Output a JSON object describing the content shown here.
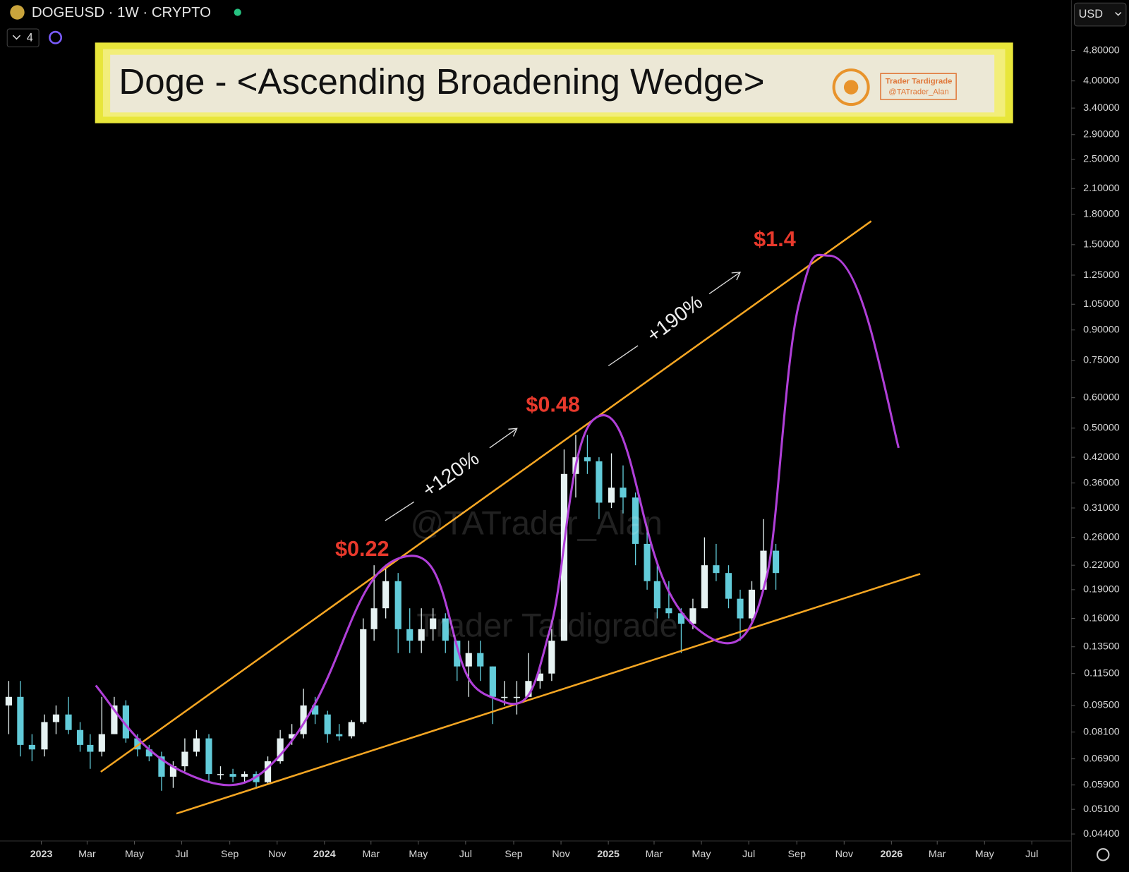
{
  "header": {
    "symbol": "DOGEUSD · 1W · CRYPTO",
    "indicator_count": "4",
    "currency": "USD"
  },
  "chart_data": {
    "type": "candlestick",
    "title": "Doge - <Ascending Broadening Wedge>",
    "logo_text": [
      "Trader Tardigrade",
      "@TATrader_Alan"
    ],
    "watermarks": [
      "@TATrader_Alan",
      "Trader Tardigrade"
    ],
    "annotations": {
      "targets": [
        {
          "label": "$0.22",
          "value": 0.22
        },
        {
          "label": "$0.48",
          "value": 0.48
        },
        {
          "label": "$1.4",
          "value": 1.4
        }
      ],
      "moves": [
        "+120%",
        "+190%"
      ]
    },
    "log_scale": true,
    "up_color": "#e6f2f2",
    "down_color": "#62cbd9",
    "ylim": [
      0.0422,
      6.49
    ],
    "xlim": [
      "2022-11-18",
      "2026-08-21"
    ],
    "yticks": [
      {
        "value": 4.8,
        "label": "4.80000"
      },
      {
        "value": 4.0,
        "label": "4.00000"
      },
      {
        "value": 3.4,
        "label": "3.40000"
      },
      {
        "value": 2.9,
        "label": "2.90000"
      },
      {
        "value": 2.5,
        "label": "2.50000"
      },
      {
        "value": 2.1,
        "label": "2.10000"
      },
      {
        "value": 1.8,
        "label": "1.80000"
      },
      {
        "value": 1.5,
        "label": "1.50000"
      },
      {
        "value": 1.25,
        "label": "1.25000"
      },
      {
        "value": 1.05,
        "label": "1.05000"
      },
      {
        "value": 0.9,
        "label": "0.90000"
      },
      {
        "value": 0.75,
        "label": "0.75000"
      },
      {
        "value": 0.6,
        "label": "0.60000"
      },
      {
        "value": 0.5,
        "label": "0.50000"
      },
      {
        "value": 0.42,
        "label": "0.42000"
      },
      {
        "value": 0.36,
        "label": "0.36000"
      },
      {
        "value": 0.31,
        "label": "0.31000"
      },
      {
        "value": 0.26,
        "label": "0.26000"
      },
      {
        "value": 0.22,
        "label": "0.22000"
      },
      {
        "value": 0.19,
        "label": "0.19000"
      },
      {
        "value": 0.16,
        "label": "0.16000"
      },
      {
        "value": 0.135,
        "label": "0.13500"
      },
      {
        "value": 0.115,
        "label": "0.11500"
      },
      {
        "value": 0.095,
        "label": "0.09500"
      },
      {
        "value": 0.081,
        "label": "0.08100"
      },
      {
        "value": 0.069,
        "label": "0.06900"
      },
      {
        "value": 0.059,
        "label": "0.05900"
      },
      {
        "value": 0.051,
        "label": "0.05100"
      },
      {
        "value": 0.044,
        "label": "0.04400"
      }
    ],
    "xticks": [
      {
        "value": "2023-01-01",
        "label": "2023"
      },
      {
        "value": "2023-03-01",
        "label": "Mar"
      },
      {
        "value": "2023-05-01",
        "label": "May"
      },
      {
        "value": "2023-07-01",
        "label": "Jul"
      },
      {
        "value": "2023-09-01",
        "label": "Sep"
      },
      {
        "value": "2023-11-01",
        "label": "Nov"
      },
      {
        "value": "2024-01-01",
        "label": "2024"
      },
      {
        "value": "2024-03-01",
        "label": "Mar"
      },
      {
        "value": "2024-05-01",
        "label": "May"
      },
      {
        "value": "2024-07-01",
        "label": "Jul"
      },
      {
        "value": "2024-09-01",
        "label": "Sep"
      },
      {
        "value": "2024-11-01",
        "label": "Nov"
      },
      {
        "value": "2025-01-01",
        "label": "2025"
      },
      {
        "value": "2025-03-01",
        "label": "Mar"
      },
      {
        "value": "2025-05-01",
        "label": "May"
      },
      {
        "value": "2025-07-01",
        "label": "Jul"
      },
      {
        "value": "2025-09-01",
        "label": "Sep"
      },
      {
        "value": "2025-11-01",
        "label": "Nov"
      },
      {
        "value": "2026-01-01",
        "label": "2026"
      },
      {
        "value": "2026-03-01",
        "label": "Mar"
      },
      {
        "value": "2026-05-01",
        "label": "May"
      },
      {
        "value": "2026-07-01",
        "label": "Jul"
      }
    ],
    "x": [
      "2022-11-20",
      "2022-12-05",
      "2022-12-20",
      "2023-01-05",
      "2023-01-20",
      "2023-02-05",
      "2023-02-20",
      "2023-03-05",
      "2023-03-20",
      "2023-04-05",
      "2023-04-20",
      "2023-05-05",
      "2023-05-20",
      "2023-06-05",
      "2023-06-20",
      "2023-07-05",
      "2023-07-20",
      "2023-08-05",
      "2023-08-20",
      "2023-09-05",
      "2023-09-20",
      "2023-10-05",
      "2023-10-20",
      "2023-11-05",
      "2023-11-20",
      "2023-12-05",
      "2023-12-20",
      "2024-01-05",
      "2024-01-20",
      "2024-02-05",
      "2024-02-20",
      "2024-03-05",
      "2024-03-20",
      "2024-04-05",
      "2024-04-20",
      "2024-05-05",
      "2024-05-20",
      "2024-06-05",
      "2024-06-20",
      "2024-07-05",
      "2024-07-20",
      "2024-08-05",
      "2024-08-20",
      "2024-09-05",
      "2024-09-20",
      "2024-10-05",
      "2024-10-20",
      "2024-11-05",
      "2024-11-20",
      "2024-12-05",
      "2024-12-20",
      "2025-01-05",
      "2025-01-20",
      "2025-02-05",
      "2025-02-20",
      "2025-03-05",
      "2025-03-20",
      "2025-04-05",
      "2025-04-20",
      "2025-05-05",
      "2025-05-20",
      "2025-06-05",
      "2025-06-20",
      "2025-07-05",
      "2025-07-20",
      "2025-08-05"
    ],
    "open": [
      0.095,
      0.1,
      0.075,
      0.073,
      0.086,
      0.09,
      0.082,
      0.075,
      0.072,
      0.08,
      0.095,
      0.078,
      0.073,
      0.07,
      0.062,
      0.066,
      0.072,
      0.078,
      0.063,
      0.063,
      0.062,
      0.063,
      0.06,
      0.068,
      0.078,
      0.08,
      0.095,
      0.09,
      0.08,
      0.079,
      0.086,
      0.15,
      0.17,
      0.2,
      0.15,
      0.14,
      0.15,
      0.16,
      0.14,
      0.12,
      0.13,
      0.12,
      0.1,
      0.1,
      0.1,
      0.11,
      0.115,
      0.14,
      0.38,
      0.42,
      0.41,
      0.32,
      0.35,
      0.33,
      0.25,
      0.2,
      0.17,
      0.165,
      0.155,
      0.17,
      0.22,
      0.21,
      0.18,
      0.16,
      0.19,
      0.24
    ],
    "high": [
      0.11,
      0.11,
      0.08,
      0.09,
      0.095,
      0.1,
      0.086,
      0.08,
      0.1,
      0.1,
      0.098,
      0.08,
      0.075,
      0.072,
      0.068,
      0.078,
      0.082,
      0.08,
      0.066,
      0.065,
      0.064,
      0.064,
      0.07,
      0.082,
      0.085,
      0.105,
      0.1,
      0.092,
      0.085,
      0.087,
      0.16,
      0.22,
      0.22,
      0.21,
      0.17,
      0.17,
      0.17,
      0.165,
      0.14,
      0.14,
      0.14,
      0.12,
      0.11,
      0.11,
      0.13,
      0.12,
      0.15,
      0.44,
      0.48,
      0.48,
      0.42,
      0.43,
      0.4,
      0.34,
      0.27,
      0.22,
      0.2,
      0.17,
      0.18,
      0.26,
      0.25,
      0.22,
      0.19,
      0.2,
      0.29,
      0.25
    ],
    "low": [
      0.08,
      0.07,
      0.068,
      0.07,
      0.08,
      0.08,
      0.072,
      0.065,
      0.07,
      0.08,
      0.076,
      0.07,
      0.068,
      0.057,
      0.058,
      0.064,
      0.07,
      0.06,
      0.061,
      0.06,
      0.06,
      0.058,
      0.059,
      0.067,
      0.075,
      0.078,
      0.085,
      0.076,
      0.077,
      0.078,
      0.085,
      0.14,
      0.16,
      0.13,
      0.13,
      0.13,
      0.14,
      0.13,
      0.11,
      0.1,
      0.11,
      0.085,
      0.095,
      0.09,
      0.1,
      0.105,
      0.11,
      0.14,
      0.33,
      0.38,
      0.29,
      0.31,
      0.3,
      0.22,
      0.19,
      0.16,
      0.16,
      0.13,
      0.15,
      0.17,
      0.2,
      0.17,
      0.14,
      0.155,
      0.19,
      0.19
    ],
    "close": [
      0.1,
      0.075,
      0.073,
      0.086,
      0.09,
      0.082,
      0.075,
      0.072,
      0.08,
      0.095,
      0.078,
      0.073,
      0.07,
      0.062,
      0.066,
      0.072,
      0.078,
      0.063,
      0.063,
      0.062,
      0.063,
      0.06,
      0.068,
      0.078,
      0.08,
      0.095,
      0.09,
      0.08,
      0.079,
      0.086,
      0.15,
      0.17,
      0.2,
      0.15,
      0.14,
      0.15,
      0.16,
      0.14,
      0.12,
      0.13,
      0.12,
      0.1,
      0.1,
      0.1,
      0.11,
      0.115,
      0.14,
      0.38,
      0.42,
      0.41,
      0.32,
      0.35,
      0.33,
      0.25,
      0.2,
      0.17,
      0.165,
      0.155,
      0.17,
      0.22,
      0.21,
      0.18,
      0.16,
      0.19,
      0.24,
      0.21
    ]
  }
}
